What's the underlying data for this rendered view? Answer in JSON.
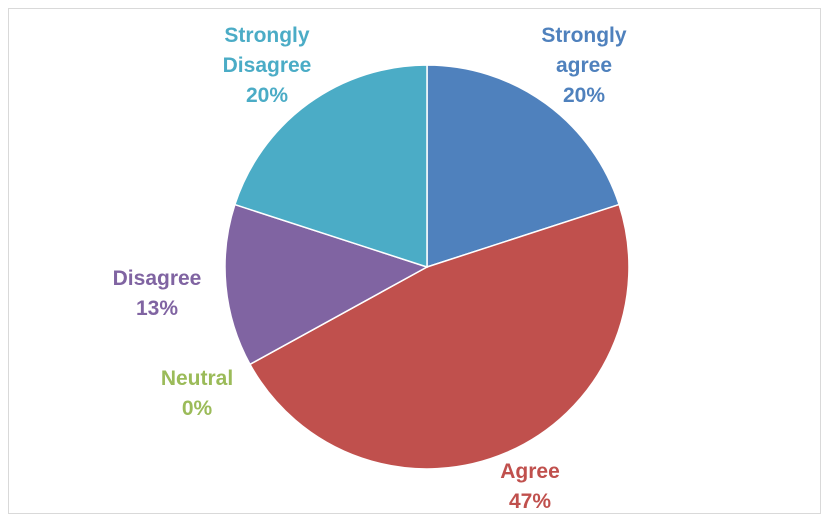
{
  "chart_data": {
    "type": "pie",
    "categories": [
      "Strongly agree",
      "Agree",
      "Neutral",
      "Disagree",
      "Strongly Disagree"
    ],
    "values": [
      20,
      47,
      0,
      13,
      20
    ],
    "labels": [
      {
        "lines": [
          "Strongly",
          "agree"
        ],
        "pct": "20%"
      },
      {
        "lines": [
          "Agree"
        ],
        "pct": "47%"
      },
      {
        "lines": [
          "Neutral"
        ],
        "pct": "0%"
      },
      {
        "lines": [
          "Disagree"
        ],
        "pct": "13%"
      },
      {
        "lines": [
          "Strongly",
          "Disagree"
        ],
        "pct": "20%"
      }
    ],
    "colors": [
      "#4f81bd",
      "#c0504d",
      "#9bbb59",
      "#8064a2",
      "#4bacc6"
    ],
    "start_angle": "12 o'clock",
    "direction": "clockwise",
    "legend": "none"
  }
}
